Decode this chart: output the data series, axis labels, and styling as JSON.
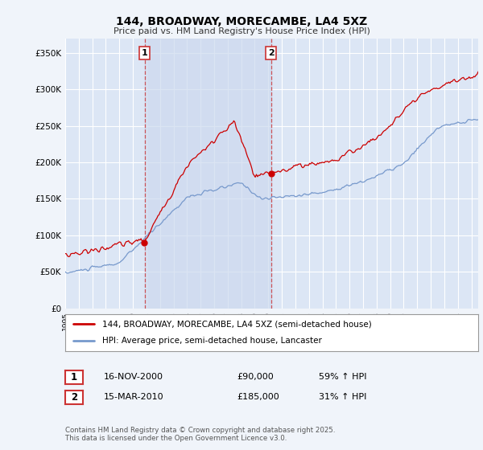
{
  "title": "144, BROADWAY, MORECAMBE, LA4 5XZ",
  "subtitle": "Price paid vs. HM Land Registry's House Price Index (HPI)",
  "background_color": "#f0f4fa",
  "plot_bg_color": "#dce6f5",
  "highlight_color": "#cdd9f0",
  "ylim": [
    0,
    370000
  ],
  "yticks": [
    0,
    50000,
    100000,
    150000,
    200000,
    250000,
    300000,
    350000
  ],
  "sale1_x": 2000.875,
  "sale1_price": 90000,
  "sale2_x": 2010.208,
  "sale2_price": 185000,
  "legend_entry1": "144, BROADWAY, MORECAMBE, LA4 5XZ (semi-detached house)",
  "legend_entry2": "HPI: Average price, semi-detached house, Lancaster",
  "table_row1": [
    "1",
    "16-NOV-2000",
    "£90,000",
    "59% ↑ HPI"
  ],
  "table_row2": [
    "2",
    "15-MAR-2010",
    "£185,000",
    "31% ↑ HPI"
  ],
  "footer": "Contains HM Land Registry data © Crown copyright and database right 2025.\nThis data is licensed under the Open Government Licence v3.0.",
  "red_color": "#cc0000",
  "blue_color": "#7799cc",
  "vline_color": "#cc3333",
  "grid_color": "#ffffff"
}
